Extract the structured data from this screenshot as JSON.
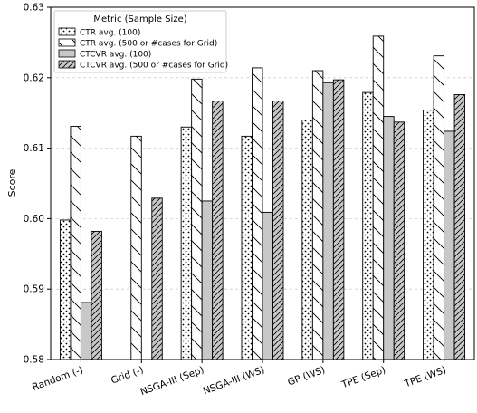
{
  "chart_data": {
    "type": "bar",
    "title": "",
    "xlabel": "",
    "ylabel": "Score",
    "ylim": [
      0.58,
      0.63
    ],
    "yticks": [
      "0.58",
      "0.59",
      "0.60",
      "0.61",
      "0.62",
      "0.63"
    ],
    "grid": "horizontal dashed",
    "legend": {
      "title": "Metric (Sample Size)",
      "placement": "top-left"
    },
    "categories": [
      "Random (-)",
      "Grid (-)",
      "NSGA-III (Sep)",
      "NSGA-III (WS)",
      "GP (WS)",
      "TPE (Sep)",
      "TPE (WS)"
    ],
    "series": [
      {
        "name": "CTR avg. (100)",
        "pattern": "dots",
        "color": "#ffffff",
        "values": [
          0.5998,
          null,
          0.613,
          0.6117,
          0.614,
          0.6179,
          0.6154
        ]
      },
      {
        "name": "CTR avg. (500 or #cases for Grid)",
        "pattern": "backslash",
        "color": "#ffffff",
        "values": [
          0.6131,
          0.6117,
          0.6198,
          0.6214,
          0.621,
          0.6259,
          0.6231
        ]
      },
      {
        "name": "CTCVR avg. (100)",
        "pattern": "none",
        "color": "#c8c8c8",
        "values": [
          0.5881,
          null,
          0.6025,
          0.6009,
          0.6193,
          0.6145,
          0.6124
        ]
      },
      {
        "name": "CTCVR avg. (500 or #cases for Grid)",
        "pattern": "slash",
        "color": "#c8c8c8",
        "values": [
          0.5982,
          0.6029,
          0.6167,
          0.6167,
          0.6197,
          0.6137,
          0.6176
        ]
      }
    ]
  }
}
